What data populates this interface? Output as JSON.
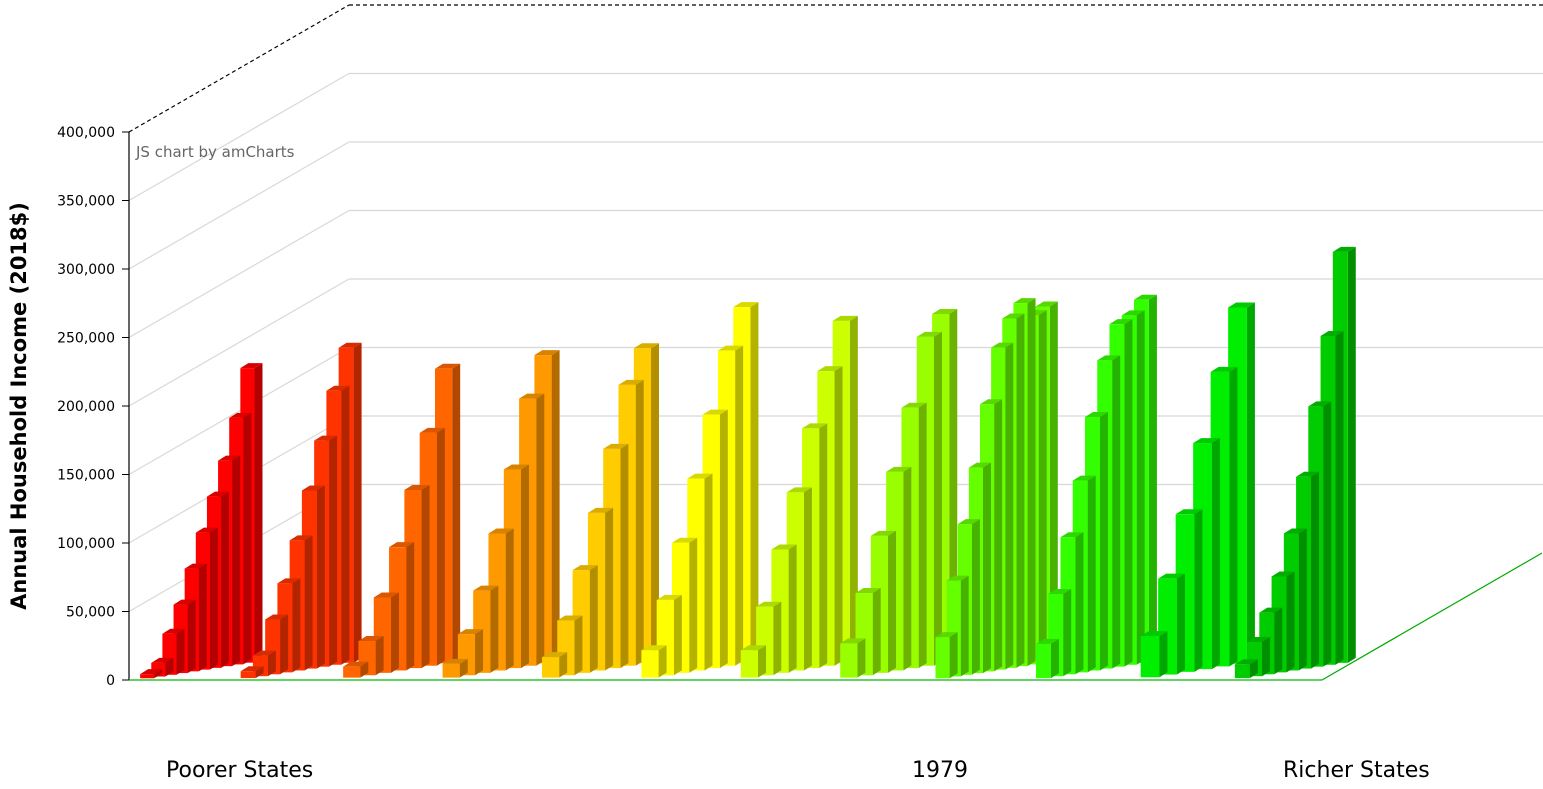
{
  "chart_data": {
    "type": "bar",
    "ylabel": "Annual Household Income (2018$)",
    "ylim": [
      0,
      400000
    ],
    "yticks": [
      "0",
      "50,000",
      "100,000",
      "150,000",
      "200,000",
      "250,000",
      "300,000",
      "350,000",
      "400,000"
    ],
    "grid": true,
    "credit": "JS chart by amCharts",
    "x_left_label": "Poorer States",
    "x_center_label": "1979",
    "x_right_label": "Richer States",
    "colors": [
      "#ff0000",
      "#ff3300",
      "#ff6600",
      "#ff9900",
      "#ffcc00",
      "#ffff00",
      "#ccff00",
      "#99ff00",
      "#66ff00",
      "#33ff00",
      "#00ee00",
      "#00cc00"
    ],
    "series": [
      {
        "values": [
          0,
          3000,
          10000,
          30000,
          50000,
          75000,
          100000,
          125000,
          150000,
          180000,
          215000
        ]
      },
      {
        "values": [
          0,
          5000,
          15000,
          40000,
          65000,
          95000,
          130000,
          165000,
          200000,
          230000
        ]
      },
      {
        "values": [
          0,
          8000,
          25000,
          55000,
          90000,
          130000,
          170000,
          215000
        ]
      },
      {
        "values": [
          0,
          10000,
          30000,
          60000,
          100000,
          145000,
          195000,
          225000
        ]
      },
      {
        "values": [
          0,
          15000,
          40000,
          75000,
          115000,
          160000,
          205000,
          230000
        ]
      },
      {
        "values": [
          0,
          20000,
          55000,
          95000,
          140000,
          185000,
          230000,
          260000
        ]
      },
      {
        "values": [
          0,
          20000,
          50000,
          90000,
          130000,
          175000,
          215000,
          250000
        ]
      },
      {
        "values": [
          0,
          25000,
          60000,
          100000,
          145000,
          190000,
          240000,
          255000
        ]
      },
      {
        "values": [
          0,
          30000,
          70000,
          110000,
          150000,
          195000,
          235000,
          255000,
          265000,
          255000,
          260000
        ]
      },
      {
        "values": [
          0,
          25000,
          60000,
          100000,
          140000,
          185000,
          225000,
          250000,
          255000,
          265000
        ]
      },
      {
        "values": [
          0,
          30000,
          70000,
          115000,
          165000,
          215000,
          260000
        ]
      },
      {
        "values": [
          0,
          10000,
          25000,
          45000,
          70000,
          100000,
          140000,
          190000,
          240000,
          300000
        ]
      }
    ]
  }
}
